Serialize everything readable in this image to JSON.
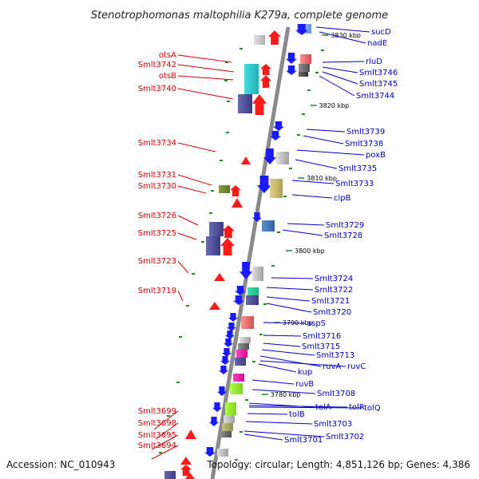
{
  "title": "Stenotrophomonas maltophilia K279a, complete genome",
  "footer": {
    "accession": "Accession: NC_010943",
    "topology": "Topology: circular; Length: 4,851,126 bp; Genes: 4,386"
  },
  "colors": {
    "backbone": "#8a8a8a",
    "left_label": "#d00000",
    "right_label": "#0000c8",
    "tick": "#1f8f1f",
    "forward_arrow": "#ff1a1a",
    "reverse_arrow": "#1a1aff"
  },
  "ticks": [
    "3830 kbp",
    "3820 kbp",
    "3810 kbp",
    "3800 kbp",
    "3790 kbp",
    "3780 kbp"
  ],
  "left_genes": [
    "otsA",
    "Smlt3742",
    "otsB",
    "Smlt3740",
    "Smlt3734",
    "Smlt3731",
    "Smlt3730",
    "Smlt3726",
    "Smlt3725",
    "Smlt3723",
    "Smlt3719",
    "Smlt3699",
    "Smlt3698",
    "Smlt3695",
    "Smlt3694"
  ],
  "right_genes": [
    "sucD",
    "nadE",
    "rluD",
    "Smlt3746",
    "Smlt3745",
    "Smlt3744",
    "Smlt3739",
    "Smlt3738",
    "poxB",
    "Smlt3735",
    "Smlt3733",
    "clpB",
    "Smlt3729",
    "Smlt3728",
    "Smlt3724",
    "Smlt3722",
    "Smlt3721",
    "Smlt3720",
    "aspS",
    "Smlt3716",
    "Smlt3715",
    "Smlt3713",
    "ruvA",
    "ruvC",
    "kup",
    "ruvB",
    "Smlt3708",
    "tolA",
    "tolR",
    "tolQ",
    "tolB",
    "Smlt3703",
    "Smlt3702",
    "Smlt3701"
  ]
}
